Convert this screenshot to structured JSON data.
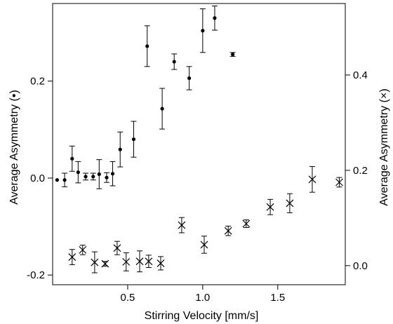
{
  "chart_data": {
    "type": "scatter",
    "xlabel": "Stirring Velocity [mm/s]",
    "ylabel_left": "Average Asymmetry (•)",
    "ylabel_right": "Average Asymmetry (×)",
    "xlim": [
      0.0,
      1.95
    ],
    "ylim_left": [
      -0.22,
      0.36
    ],
    "ylim_right": [
      -0.04,
      0.55
    ],
    "x_ticks": [
      0.5,
      1.0,
      1.5
    ],
    "x_tick_labels": [
      "0.5",
      "1.0",
      "1.5"
    ],
    "y_left_ticks": [
      -0.2,
      0.0,
      0.2
    ],
    "y_left_tick_labels": [
      "-0.2",
      "0.0",
      "0.2"
    ],
    "y_right_ticks": [
      0.0,
      0.2,
      0.4
    ],
    "y_right_tick_labels": [
      "0.0",
      "0.2",
      "0.4"
    ],
    "grid": false,
    "series": [
      {
        "marker": "dot",
        "axis": "left",
        "points": [
          {
            "x": 0.03,
            "y": -0.004,
            "err": 0.0
          },
          {
            "x": 0.08,
            "y": -0.004,
            "err": 0.014
          },
          {
            "x": 0.13,
            "y": 0.04,
            "err": 0.026
          },
          {
            "x": 0.17,
            "y": 0.012,
            "err": 0.022
          },
          {
            "x": 0.22,
            "y": 0.003,
            "err": 0.007
          },
          {
            "x": 0.27,
            "y": 0.003,
            "err": 0.007
          },
          {
            "x": 0.31,
            "y": 0.008,
            "err": 0.03
          },
          {
            "x": 0.36,
            "y": 0.001,
            "err": 0.01
          },
          {
            "x": 0.4,
            "y": 0.009,
            "err": 0.025
          },
          {
            "x": 0.45,
            "y": 0.059,
            "err": 0.036
          },
          {
            "x": 0.54,
            "y": 0.08,
            "err": 0.037
          },
          {
            "x": 0.63,
            "y": 0.272,
            "err": 0.042
          },
          {
            "x": 0.73,
            "y": 0.143,
            "err": 0.042
          },
          {
            "x": 0.81,
            "y": 0.24,
            "err": 0.016
          },
          {
            "x": 0.91,
            "y": 0.206,
            "err": 0.024
          },
          {
            "x": 1.0,
            "y": 0.304,
            "err": 0.045
          },
          {
            "x": 1.08,
            "y": 0.33,
            "err": 0.025
          },
          {
            "x": 1.2,
            "y": 0.255,
            "err": 0.004
          }
        ]
      },
      {
        "marker": "cross",
        "axis": "right",
        "points": [
          {
            "x": 0.13,
            "y": 0.018,
            "err": 0.016
          },
          {
            "x": 0.2,
            "y": 0.033,
            "err": 0.01
          },
          {
            "x": 0.28,
            "y": 0.007,
            "err": 0.022
          },
          {
            "x": 0.35,
            "y": 0.004,
            "err": 0.005
          },
          {
            "x": 0.43,
            "y": 0.037,
            "err": 0.014
          },
          {
            "x": 0.49,
            "y": 0.008,
            "err": 0.019
          },
          {
            "x": 0.58,
            "y": 0.009,
            "err": 0.022
          },
          {
            "x": 0.64,
            "y": 0.009,
            "err": 0.013
          },
          {
            "x": 0.72,
            "y": 0.005,
            "err": 0.014
          },
          {
            "x": 0.86,
            "y": 0.085,
            "err": 0.016
          },
          {
            "x": 1.01,
            "y": 0.044,
            "err": 0.018
          },
          {
            "x": 1.17,
            "y": 0.073,
            "err": 0.01
          },
          {
            "x": 1.29,
            "y": 0.088,
            "err": 0.008
          },
          {
            "x": 1.45,
            "y": 0.123,
            "err": 0.016
          },
          {
            "x": 1.58,
            "y": 0.131,
            "err": 0.02
          },
          {
            "x": 1.73,
            "y": 0.181,
            "err": 0.027
          },
          {
            "x": 1.91,
            "y": 0.175,
            "err": 0.01
          }
        ]
      }
    ]
  }
}
